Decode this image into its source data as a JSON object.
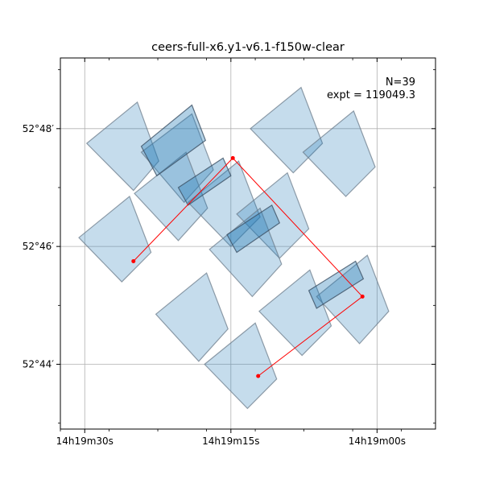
{
  "chart_data": {
    "type": "footprint",
    "title": "ceers-full-x6.y1-v6.1-f150w-clear",
    "annotations": [
      "N=39",
      "expt = 119049.3"
    ],
    "grid": true,
    "xlabel": "",
    "ylabel": "",
    "x_ticks": [
      {
        "value": 0,
        "label": "14h19m30s"
      },
      {
        "value": 15,
        "label": "14h19m15s"
      },
      {
        "value": 30,
        "label": "14h19m00s"
      }
    ],
    "y_ticks": [
      {
        "value": 0,
        "label": "52°44′"
      },
      {
        "value": 2,
        "label": "52°46′"
      },
      {
        "value": 4,
        "label": "52°48′"
      }
    ],
    "x_minor_ticks": [
      -2.5,
      2.5,
      7.5,
      12.5,
      17.5,
      22.5,
      27.5,
      32.5,
      37.5
    ],
    "y_minor_ticks": [
      -1,
      1,
      3,
      5
    ],
    "xlim": [
      -2.5,
      36
    ],
    "ylim": [
      -1.1,
      5.2
    ],
    "footprints": [
      {
        "corners": [
          [
            0.2,
            3.75
          ],
          [
            5.4,
            4.45
          ],
          [
            7.6,
            3.45
          ],
          [
            5.0,
            2.95
          ]
        ]
      },
      {
        "corners": [
          [
            5.8,
            3.6
          ],
          [
            11.0,
            4.25
          ],
          [
            13.2,
            3.3
          ],
          [
            10.2,
            2.75
          ]
        ]
      },
      {
        "corners": [
          [
            17.0,
            4.0
          ],
          [
            22.2,
            4.7
          ],
          [
            24.4,
            3.75
          ],
          [
            21.4,
            3.25
          ]
        ]
      },
      {
        "corners": [
          [
            22.4,
            3.6
          ],
          [
            27.6,
            4.3
          ],
          [
            29.8,
            3.35
          ],
          [
            26.8,
            2.85
          ]
        ]
      },
      {
        "corners": [
          [
            5.1,
            2.9
          ],
          [
            10.4,
            3.6
          ],
          [
            12.6,
            2.65
          ],
          [
            9.6,
            2.1
          ]
        ]
      },
      {
        "corners": [
          [
            10.6,
            2.75
          ],
          [
            15.8,
            3.45
          ],
          [
            18.0,
            2.5
          ],
          [
            15.0,
            2.0
          ]
        ]
      },
      {
        "corners": [
          [
            15.6,
            2.55
          ],
          [
            20.8,
            3.25
          ],
          [
            23.0,
            2.3
          ],
          [
            20.0,
            1.8
          ]
        ]
      },
      {
        "corners": [
          [
            -0.6,
            2.15
          ],
          [
            4.6,
            2.85
          ],
          [
            6.8,
            1.9
          ],
          [
            3.8,
            1.4
          ]
        ]
      },
      {
        "corners": [
          [
            12.8,
            1.95
          ],
          [
            18.0,
            2.65
          ],
          [
            20.2,
            1.7
          ],
          [
            17.2,
            1.15
          ]
        ]
      },
      {
        "corners": [
          [
            7.3,
            0.85
          ],
          [
            12.5,
            1.55
          ],
          [
            14.7,
            0.6
          ],
          [
            11.7,
            0.05
          ]
        ]
      },
      {
        "corners": [
          [
            17.9,
            0.9
          ],
          [
            23.1,
            1.6
          ],
          [
            25.3,
            0.65
          ],
          [
            22.3,
            0.15
          ]
        ]
      },
      {
        "corners": [
          [
            23.8,
            1.15
          ],
          [
            29.0,
            1.85
          ],
          [
            31.2,
            0.9
          ],
          [
            28.2,
            0.35
          ]
        ]
      },
      {
        "corners": [
          [
            12.3,
            0.0
          ],
          [
            17.5,
            0.7
          ],
          [
            19.7,
            -0.25
          ],
          [
            16.7,
            -0.75
          ]
        ]
      }
    ],
    "overlaps": [
      {
        "corners": [
          [
            5.8,
            3.7
          ],
          [
            11.0,
            4.4
          ],
          [
            12.4,
            3.8
          ],
          [
            7.4,
            3.2
          ]
        ]
      },
      {
        "corners": [
          [
            9.6,
            3.0
          ],
          [
            14.2,
            3.5
          ],
          [
            15.0,
            3.2
          ],
          [
            10.6,
            2.7
          ]
        ]
      },
      {
        "corners": [
          [
            14.6,
            2.2
          ],
          [
            19.2,
            2.7
          ],
          [
            20.0,
            2.4
          ],
          [
            15.6,
            1.9
          ]
        ]
      },
      {
        "corners": [
          [
            23.0,
            1.25
          ],
          [
            27.8,
            1.75
          ],
          [
            28.6,
            1.45
          ],
          [
            23.8,
            0.95
          ]
        ]
      }
    ],
    "pointing_path": [
      [
        5.0,
        1.75
      ],
      [
        15.2,
        3.5
      ],
      [
        28.5,
        1.15
      ],
      [
        17.8,
        -0.2
      ]
    ]
  }
}
